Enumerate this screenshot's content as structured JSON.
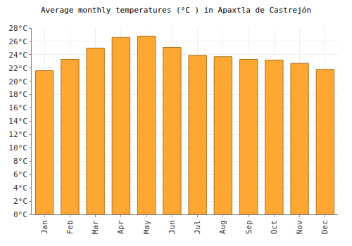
{
  "chart_data": {
    "type": "bar",
    "title": "Average monthly temperatures (°C ) in Apaxtla de Castrejón",
    "categories": [
      "Jan",
      "Feb",
      "Mar",
      "Apr",
      "May",
      "Jun",
      "Jul",
      "Aug",
      "Sep",
      "Oct",
      "Nov",
      "Dec"
    ],
    "values": [
      21.6,
      23.3,
      25.0,
      26.6,
      26.8,
      25.1,
      23.9,
      23.7,
      23.3,
      23.2,
      22.7,
      21.8
    ],
    "color": "#ffa733",
    "ylim": [
      0,
      28
    ],
    "yticks": [
      {
        "value": 0,
        "label": "0°C"
      },
      {
        "value": 2,
        "label": "2°C"
      },
      {
        "value": 4,
        "label": "4°C"
      },
      {
        "value": 6,
        "label": "6°C"
      },
      {
        "value": 8,
        "label": "8°C"
      },
      {
        "value": 10,
        "label": "10°C"
      },
      {
        "value": 12,
        "label": "12°C"
      },
      {
        "value": 14,
        "label": "14°C"
      },
      {
        "value": 16,
        "label": "16°C"
      },
      {
        "value": 18,
        "label": "18°C"
      },
      {
        "value": 20,
        "label": "20°C"
      },
      {
        "value": 22,
        "label": "22°C"
      },
      {
        "value": 24,
        "label": "24°C"
      },
      {
        "value": 26,
        "label": "26°C"
      },
      {
        "value": 28,
        "label": "28°C"
      }
    ],
    "grid": true
  }
}
